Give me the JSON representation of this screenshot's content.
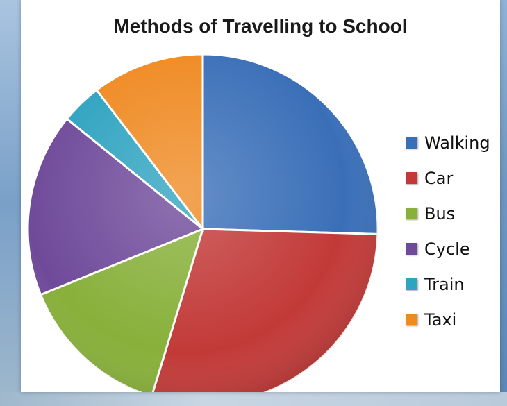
{
  "chart_data": {
    "type": "pie",
    "title": "Methods of Travelling to School",
    "categories": [
      "Walking",
      "Car",
      "Bus",
      "Cycle",
      "Train",
      "Taxi"
    ],
    "values": [
      27,
      31,
      15,
      18,
      4,
      11
    ],
    "colors": [
      "#3a6fb8",
      "#c23a38",
      "#88b03a",
      "#6f4a9a",
      "#2fa3c0",
      "#ef8a22"
    ],
    "legend_position": "right"
  }
}
